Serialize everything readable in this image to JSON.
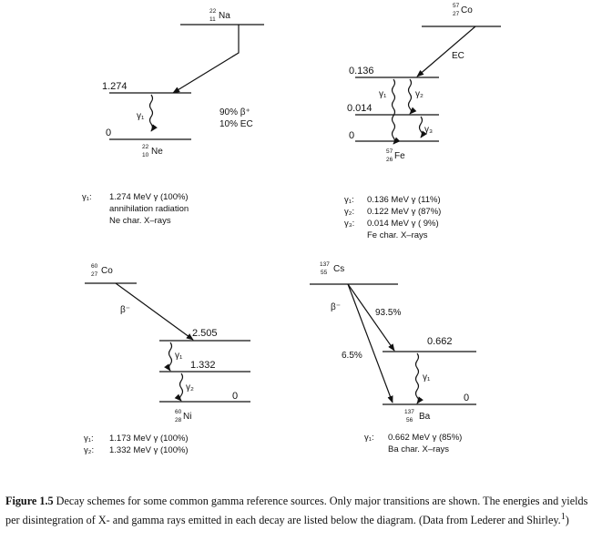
{
  "schemes": {
    "na22": {
      "parent": {
        "mass": "22",
        "z": "11",
        "symbol": "Na"
      },
      "daughter": {
        "mass": "22",
        "z": "10",
        "symbol": "Ne"
      },
      "levels": [
        "1.274",
        "0"
      ],
      "mode": [
        "90% β⁺",
        "10% EC"
      ],
      "gamma_label": "γ₁",
      "emissions": [
        {
          "label": "γ₁:",
          "text": "1.274 MeV γ (100%)"
        },
        {
          "label": "",
          "text": "annihilation radiation"
        },
        {
          "label": "",
          "text": "Ne char. X–rays"
        }
      ]
    },
    "co57": {
      "parent": {
        "mass": "57",
        "z": "27",
        "symbol": "Co"
      },
      "daughter": {
        "mass": "57",
        "z": "26",
        "symbol": "Fe"
      },
      "levels": [
        "0.136",
        "0.014",
        "0"
      ],
      "mode": "EC",
      "gamma_labels": [
        "γ₁",
        "γ₂",
        "γ₃"
      ],
      "emissions": [
        {
          "label": "γ₁:",
          "text": "0.136 MeV γ (11%)"
        },
        {
          "label": "γ₂:",
          "text": "0.122 MeV γ (87%)"
        },
        {
          "label": "γ₃:",
          "text": "0.014 MeV γ ( 9%)"
        },
        {
          "label": "",
          "text": "Fe char. X–rays"
        }
      ]
    },
    "co60": {
      "parent": {
        "mass": "60",
        "z": "27",
        "symbol": "Co"
      },
      "daughter": {
        "mass": "60",
        "z": "28",
        "symbol": "Ni"
      },
      "levels": [
        "2.505",
        "1.332",
        "0"
      ],
      "mode": "β⁻",
      "gamma_labels": [
        "γ₁",
        "γ₂"
      ],
      "emissions": [
        {
          "label": "γ₁:",
          "text": "1.173 MeV γ (100%)"
        },
        {
          "label": "γ₂:",
          "text": "1.332 MeV γ (100%)"
        }
      ]
    },
    "cs137": {
      "parent": {
        "mass": "137",
        "z": "55",
        "symbol": "Cs"
      },
      "daughter": {
        "mass": "137",
        "z": "56",
        "symbol": "Ba"
      },
      "levels": [
        "0.662",
        "0"
      ],
      "mode": "β⁻",
      "branches": [
        "93.5%",
        "6.5%"
      ],
      "gamma_label": "γ₁",
      "emissions": [
        {
          "label": "γ₁:",
          "text": "0.662 MeV γ (85%)"
        },
        {
          "label": "",
          "text": "Ba char. X–rays"
        }
      ]
    }
  },
  "caption": {
    "label": "Figure 1.5",
    "text": "Decay schemes for some common gamma reference sources. Only major transitions are shown. The energies and yields per disintegration of X- and gamma rays emitted in each decay are listed below the diagram. (Data from Lederer and Shirley.",
    "ref": "1",
    "tail": ")"
  }
}
